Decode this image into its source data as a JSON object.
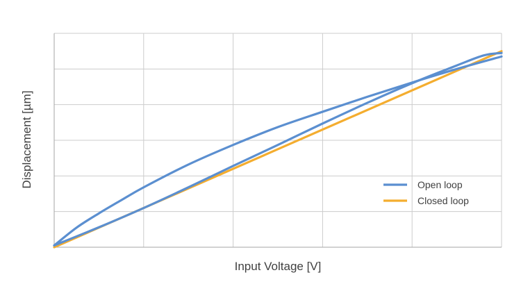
{
  "chart_data": {
    "type": "line",
    "title": "",
    "xlabel": "Input Voltage [V]",
    "ylabel": "Displacement [µm]",
    "xlim": [
      0,
      5
    ],
    "ylim": [
      0,
      6
    ],
    "grid": true,
    "tick_labels_shown": false,
    "legend_position": "right",
    "series": [
      {
        "name": "Open loop",
        "color": "#5b8fd0",
        "segments": [
          {
            "x": [
              0,
              0.25,
              0.5,
              0.75,
              1.0,
              1.5,
              2.0,
              2.5,
              3.0,
              3.5,
              4.0,
              4.5,
              5.0
            ],
            "y": [
              0.05,
              0.55,
              0.95,
              1.32,
              1.68,
              2.32,
              2.87,
              3.37,
              3.8,
              4.22,
              4.62,
              5.0,
              5.35
            ]
          },
          {
            "x": [
              0,
              0.5,
              1.0,
              1.5,
              2.0,
              2.5,
              3.0,
              3.5,
              4.0,
              4.5,
              4.8,
              5.0
            ],
            "y": [
              0.05,
              0.56,
              1.1,
              1.68,
              2.28,
              2.87,
              3.47,
              4.05,
              4.6,
              5.1,
              5.38,
              5.45
            ]
          }
        ]
      },
      {
        "name": "Closed loop",
        "color": "#f4ad2f",
        "segments": [
          {
            "x": [
              0,
              5.0
            ],
            "y": [
              0.0,
              5.5
            ]
          }
        ]
      }
    ]
  }
}
